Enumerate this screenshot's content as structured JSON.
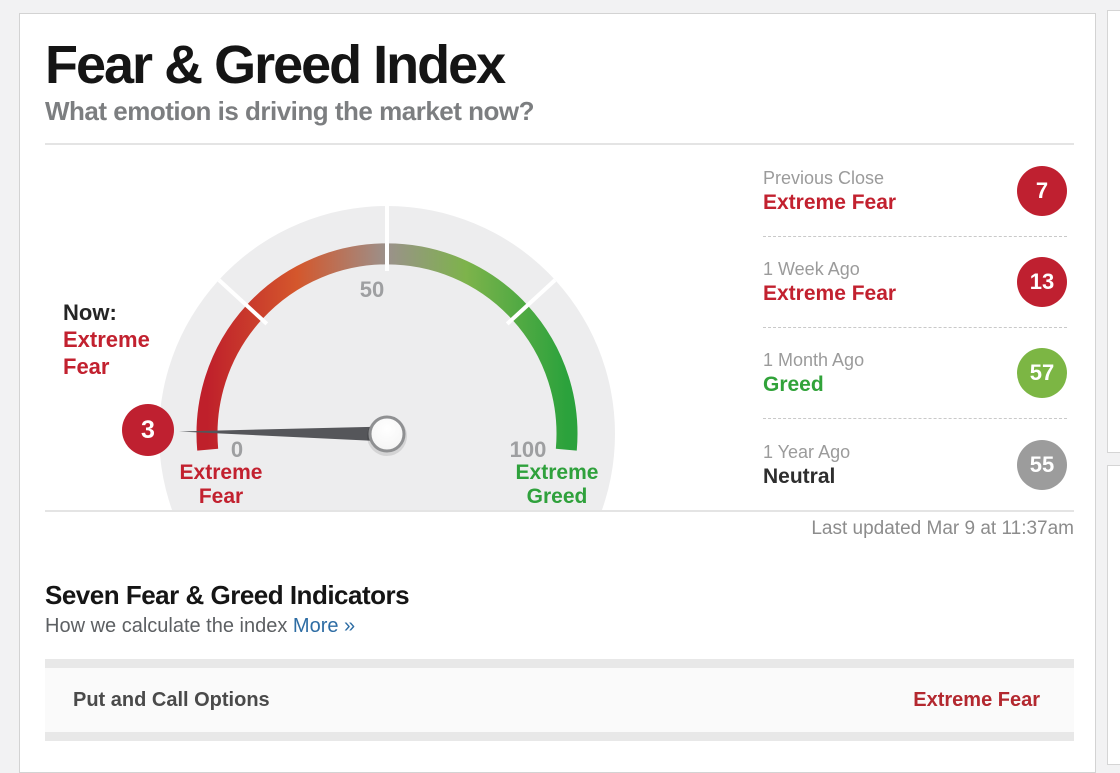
{
  "page": {
    "title": "Fear & Greed Index",
    "subtitle": "What emotion is driving the market now?"
  },
  "gauge": {
    "now_label": "Now:",
    "now_status": "Extreme Fear",
    "value": 3,
    "tick_min": "0",
    "tick_mid": "50",
    "tick_max": "100",
    "left_end_label": "Extreme Fear",
    "right_end_label": "Extreme Greed"
  },
  "history": {
    "items": [
      {
        "label": "Previous Close",
        "status": "Extreme Fear",
        "value": "7",
        "color": "#bf2030"
      },
      {
        "label": "1 Week Ago",
        "status": "Extreme Fear",
        "value": "13",
        "color": "#bf2030"
      },
      {
        "label": "1 Month Ago",
        "status": "Greed",
        "value": "57",
        "color": "#7cb644"
      },
      {
        "label": "1 Year Ago",
        "status": "Neutral",
        "value": "55",
        "color": "#9c9c9c"
      }
    ]
  },
  "last_updated": "Last updated Mar 9 at 11:37am",
  "indicators": {
    "heading": "Seven Fear & Greed Indicators",
    "sub_text": "How we calculate the index",
    "more_link": "More »",
    "rows": [
      {
        "name": "Put and Call Options",
        "status": "Extreme Fear"
      }
    ]
  },
  "colors": {
    "fear_red": "#c2212f",
    "greed_green": "#31a33a",
    "neutral_gray": "#9c9c9c",
    "link_blue": "#2e6da4",
    "gauge_arc_red": "#bf202b",
    "gauge_arc_green": "#2ba23c"
  }
}
